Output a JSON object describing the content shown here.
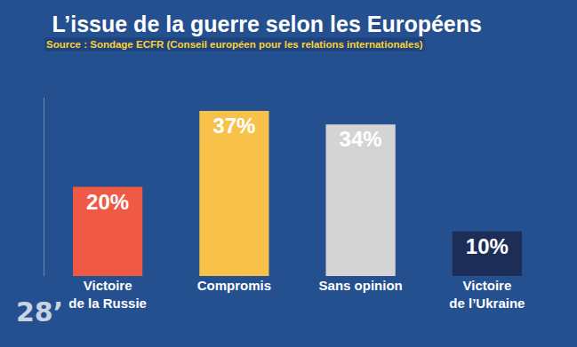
{
  "chart_data": {
    "type": "bar",
    "title": "L’issue de la guerre selon les Européens",
    "subtitle": "Source : Sondage ECFR (Conseil européen pour les relations internationales)",
    "categories": [
      "Victoire de la Russie",
      "Compromis",
      "Sans opinion",
      "Victoire de l’Ukraine"
    ],
    "values": [
      20,
      37,
      34,
      10
    ],
    "value_labels": [
      "20%",
      "37%",
      "34%",
      "10%"
    ],
    "colors": [
      "#f05a45",
      "#f7c14a",
      "#d4d4d4",
      "#1c2d58"
    ],
    "data_labels": true,
    "ylim": [
      0,
      40
    ],
    "yticks": [],
    "grid": false,
    "tick_labels": "x",
    "annotations": [
      "28’"
    ]
  }
}
